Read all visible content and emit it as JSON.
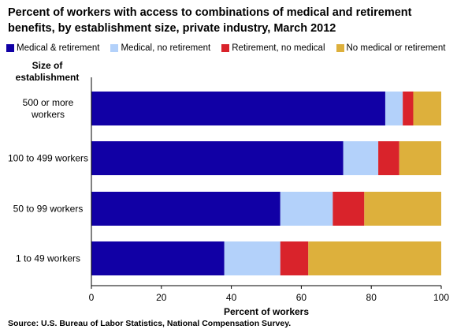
{
  "chart_data": {
    "type": "bar",
    "orientation": "horizontal",
    "stacked": true,
    "title": "Percent of workers with access to combinations of medical and retirement benefits, by establishment size, private industry,  March 2012",
    "ylabel": "Size of establishment",
    "xlabel": "Percent of workers",
    "categories": [
      "500 or more workers",
      "100 to 499 workers",
      "50 to 99 workers",
      "1 to 49 workers"
    ],
    "series": [
      {
        "name": "Medical & retirement",
        "color": "#1100A5",
        "values": [
          84,
          72,
          54,
          38
        ]
      },
      {
        "name": "Medical, no retirement",
        "color": "#B3D1FA",
        "values": [
          5,
          10,
          15,
          16
        ]
      },
      {
        "name": "Retirement, no medical",
        "color": "#D9232B",
        "values": [
          3,
          6,
          9,
          8
        ]
      },
      {
        "name": "No medical or retirement",
        "color": "#DDB03C",
        "values": [
          8,
          12,
          22,
          38
        ]
      }
    ],
    "xlim": [
      0,
      100
    ],
    "xticks": [
      "0",
      "20",
      "40",
      "60",
      "80",
      "100"
    ],
    "legend_position": "top",
    "grid": false
  },
  "source": "Source: U.S. Bureau of Labor Statistics, National Compensation Survey."
}
